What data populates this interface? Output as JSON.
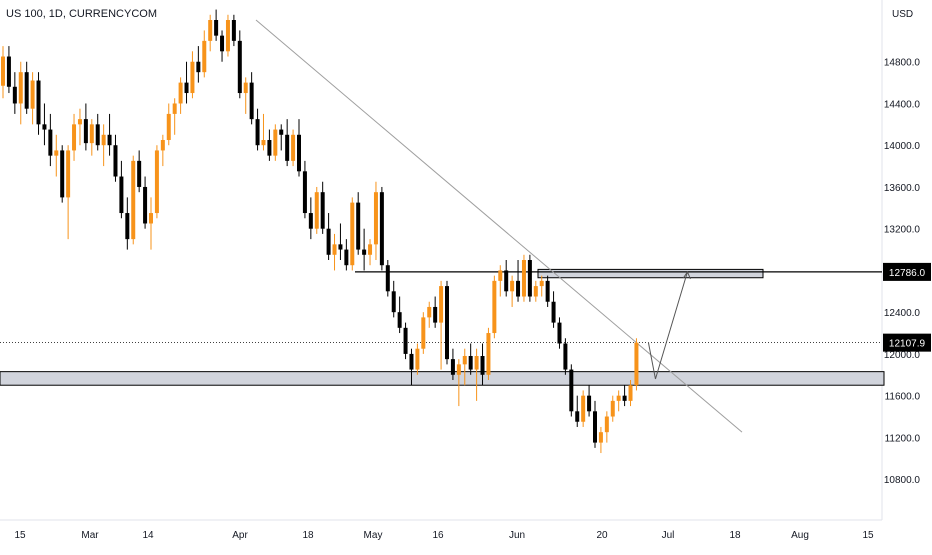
{
  "symbol": "US 100, 1D, CURRENCYCOM",
  "currency": "USD",
  "colors": {
    "up": "#f7931a",
    "down": "#000000",
    "zone_fill": "#d1d4dc",
    "zone_stroke": "#000000",
    "trendline": "#9e9e9e",
    "price_tag_bg": "#000000",
    "price_tag_text": "#ffffff",
    "axis_text": "#131722"
  },
  "chart_data": {
    "type": "candlestick",
    "ylim": [
      10600,
      15200
    ],
    "y_ticks": [
      10800.0,
      11200.0,
      11600.0,
      12000.0,
      12400.0,
      12800.0,
      13200.0,
      13600.0,
      14000.0,
      14400.0,
      14800.0
    ],
    "x_ticks": [
      "15",
      "Mar",
      "14",
      "Apr",
      "18",
      "May",
      "16",
      "Jun",
      "20",
      "Jul",
      "18",
      "Aug",
      "15"
    ],
    "x_tick_positions": [
      20,
      90,
      148,
      240,
      308,
      373,
      438,
      517,
      602,
      668,
      735,
      800,
      868
    ],
    "price_tags": [
      {
        "value": "12786.0",
        "price": 12786
      },
      {
        "value": "12107.9",
        "price": 12108
      }
    ],
    "annotations": {
      "resistance_line": {
        "price": 12786
      },
      "resistance_zone": {
        "low": 12730,
        "high": 12810
      },
      "support_zone": {
        "low": 11700,
        "high": 11830
      },
      "last_price_line": {
        "price": 12108
      },
      "trendline": {
        "from_price": 15200,
        "to_price": 11250
      },
      "projection_path": [
        12108,
        11760,
        12786
      ]
    },
    "candles": [
      [
        14570,
        14950,
        14450,
        14850
      ],
      [
        14850,
        14950,
        14500,
        14560
      ],
      [
        14560,
        14700,
        14300,
        14400
      ],
      [
        14400,
        14800,
        14200,
        14700
      ],
      [
        14700,
        14800,
        14300,
        14350
      ],
      [
        14350,
        14700,
        14200,
        14620
      ],
      [
        14620,
        14700,
        14100,
        14200
      ],
      [
        14200,
        14400,
        14000,
        14150
      ],
      [
        14150,
        14300,
        13800,
        13900
      ],
      [
        13900,
        14100,
        13700,
        13950
      ],
      [
        13950,
        14000,
        13450,
        13500
      ],
      [
        13500,
        14000,
        13100,
        13950
      ],
      [
        13950,
        14300,
        13850,
        14200
      ],
      [
        14200,
        14350,
        14000,
        14250
      ],
      [
        14250,
        14400,
        13950,
        14020
      ],
      [
        14020,
        14250,
        13900,
        14200
      ],
      [
        14200,
        14300,
        13950,
        14000
      ],
      [
        14000,
        14200,
        13800,
        14100
      ],
      [
        14100,
        14300,
        13900,
        14000
      ],
      [
        14000,
        14100,
        13650,
        13700
      ],
      [
        13700,
        13850,
        13300,
        13350
      ],
      [
        13350,
        13500,
        13000,
        13100
      ],
      [
        13100,
        13900,
        13050,
        13850
      ],
      [
        13850,
        13950,
        13550,
        13600
      ],
      [
        13600,
        13700,
        13200,
        13250
      ],
      [
        13250,
        13500,
        13000,
        13350
      ],
      [
        13350,
        14000,
        13300,
        13950
      ],
      [
        13950,
        14100,
        13800,
        14050
      ],
      [
        14050,
        14400,
        14000,
        14300
      ],
      [
        14300,
        14450,
        14100,
        14400
      ],
      [
        14400,
        14650,
        14300,
        14600
      ],
      [
        14600,
        14800,
        14400,
        14500
      ],
      [
        14500,
        14900,
        14450,
        14800
      ],
      [
        14800,
        14950,
        14600,
        14700
      ],
      [
        14700,
        15100,
        14650,
        15000
      ],
      [
        15000,
        15250,
        14900,
        15200
      ],
      [
        15200,
        15300,
        15000,
        15050
      ],
      [
        15050,
        15100,
        14800,
        14900
      ],
      [
        14900,
        15250,
        14850,
        15200
      ],
      [
        15200,
        15250,
        14950,
        15000
      ],
      [
        15000,
        15100,
        14450,
        14500
      ],
      [
        14500,
        14650,
        14300,
        14600
      ],
      [
        14600,
        14700,
        14200,
        14250
      ],
      [
        14250,
        14350,
        13950,
        14000
      ],
      [
        14000,
        14300,
        13950,
        14050
      ],
      [
        14050,
        14150,
        13850,
        13900
      ],
      [
        13900,
        14200,
        13850,
        14150
      ],
      [
        14150,
        14200,
        13950,
        14100
      ],
      [
        14100,
        14250,
        13800,
        13850
      ],
      [
        13850,
        14150,
        13800,
        14100
      ],
      [
        14100,
        14250,
        13700,
        13750
      ],
      [
        13750,
        13850,
        13300,
        13350
      ],
      [
        13350,
        13500,
        13100,
        13200
      ],
      [
        13200,
        13600,
        13150,
        13550
      ],
      [
        13550,
        13650,
        13150,
        13200
      ],
      [
        13200,
        13350,
        12900,
        12950
      ],
      [
        12950,
        13150,
        12800,
        13050
      ],
      [
        13050,
        13250,
        12900,
        13000
      ],
      [
        13000,
        13100,
        12800,
        12850
      ],
      [
        12850,
        13500,
        12800,
        13450
      ],
      [
        13450,
        13550,
        12950,
        13000
      ],
      [
        13000,
        13200,
        12800,
        12950
      ],
      [
        12950,
        13100,
        12850,
        13050
      ],
      [
        13050,
        13650,
        12900,
        13550
      ],
      [
        13550,
        13600,
        12800,
        12850
      ],
      [
        12850,
        12900,
        12550,
        12600
      ],
      [
        12600,
        12700,
        12350,
        12400
      ],
      [
        12400,
        12550,
        12200,
        12250
      ],
      [
        12250,
        12300,
        11950,
        12000
      ],
      [
        12000,
        12050,
        11700,
        11850
      ],
      [
        11850,
        12100,
        11800,
        12050
      ],
      [
        12050,
        12400,
        12000,
        12350
      ],
      [
        12350,
        12500,
        12250,
        12450
      ],
      [
        12450,
        12550,
        12250,
        12300
      ],
      [
        12300,
        12700,
        11850,
        12650
      ],
      [
        12650,
        12700,
        11900,
        11950
      ],
      [
        11950,
        12050,
        11750,
        11800
      ],
      [
        11800,
        11950,
        11500,
        11900
      ],
      [
        11900,
        12050,
        11700,
        11980
      ],
      [
        11980,
        12100,
        11800,
        11850
      ],
      [
        11850,
        12050,
        11550,
        11980
      ],
      [
        11980,
        12100,
        11700,
        11800
      ],
      [
        11800,
        12250,
        11750,
        12200
      ],
      [
        12200,
        12750,
        12150,
        12700
      ],
      [
        12700,
        12850,
        12550,
        12800
      ],
      [
        12800,
        12900,
        12550,
        12600
      ],
      [
        12600,
        12750,
        12450,
        12700
      ],
      [
        12700,
        12900,
        12500,
        12550
      ],
      [
        12550,
        12950,
        12500,
        12900
      ],
      [
        12900,
        12950,
        12500,
        12550
      ],
      [
        12550,
        12700,
        12500,
        12650
      ],
      [
        12650,
        12750,
        12550,
        12700
      ],
      [
        12700,
        12750,
        12450,
        12500
      ],
      [
        12500,
        12600,
        12250,
        12300
      ],
      [
        12300,
        12350,
        12050,
        12100
      ],
      [
        12100,
        12150,
        11800,
        11850
      ],
      [
        11850,
        11900,
        11400,
        11450
      ],
      [
        11450,
        11600,
        11300,
        11350
      ],
      [
        11350,
        11650,
        11300,
        11600
      ],
      [
        11600,
        11700,
        11400,
        11450
      ],
      [
        11450,
        11550,
        11100,
        11150
      ],
      [
        11150,
        11300,
        11050,
        11250
      ],
      [
        11250,
        11450,
        11150,
        11400
      ],
      [
        11400,
        11600,
        11350,
        11550
      ],
      [
        11550,
        11650,
        11450,
        11600
      ],
      [
        11600,
        11700,
        11500,
        11550
      ],
      [
        11550,
        11750,
        11500,
        11700
      ],
      [
        11700,
        12150,
        11650,
        12108
      ]
    ]
  }
}
